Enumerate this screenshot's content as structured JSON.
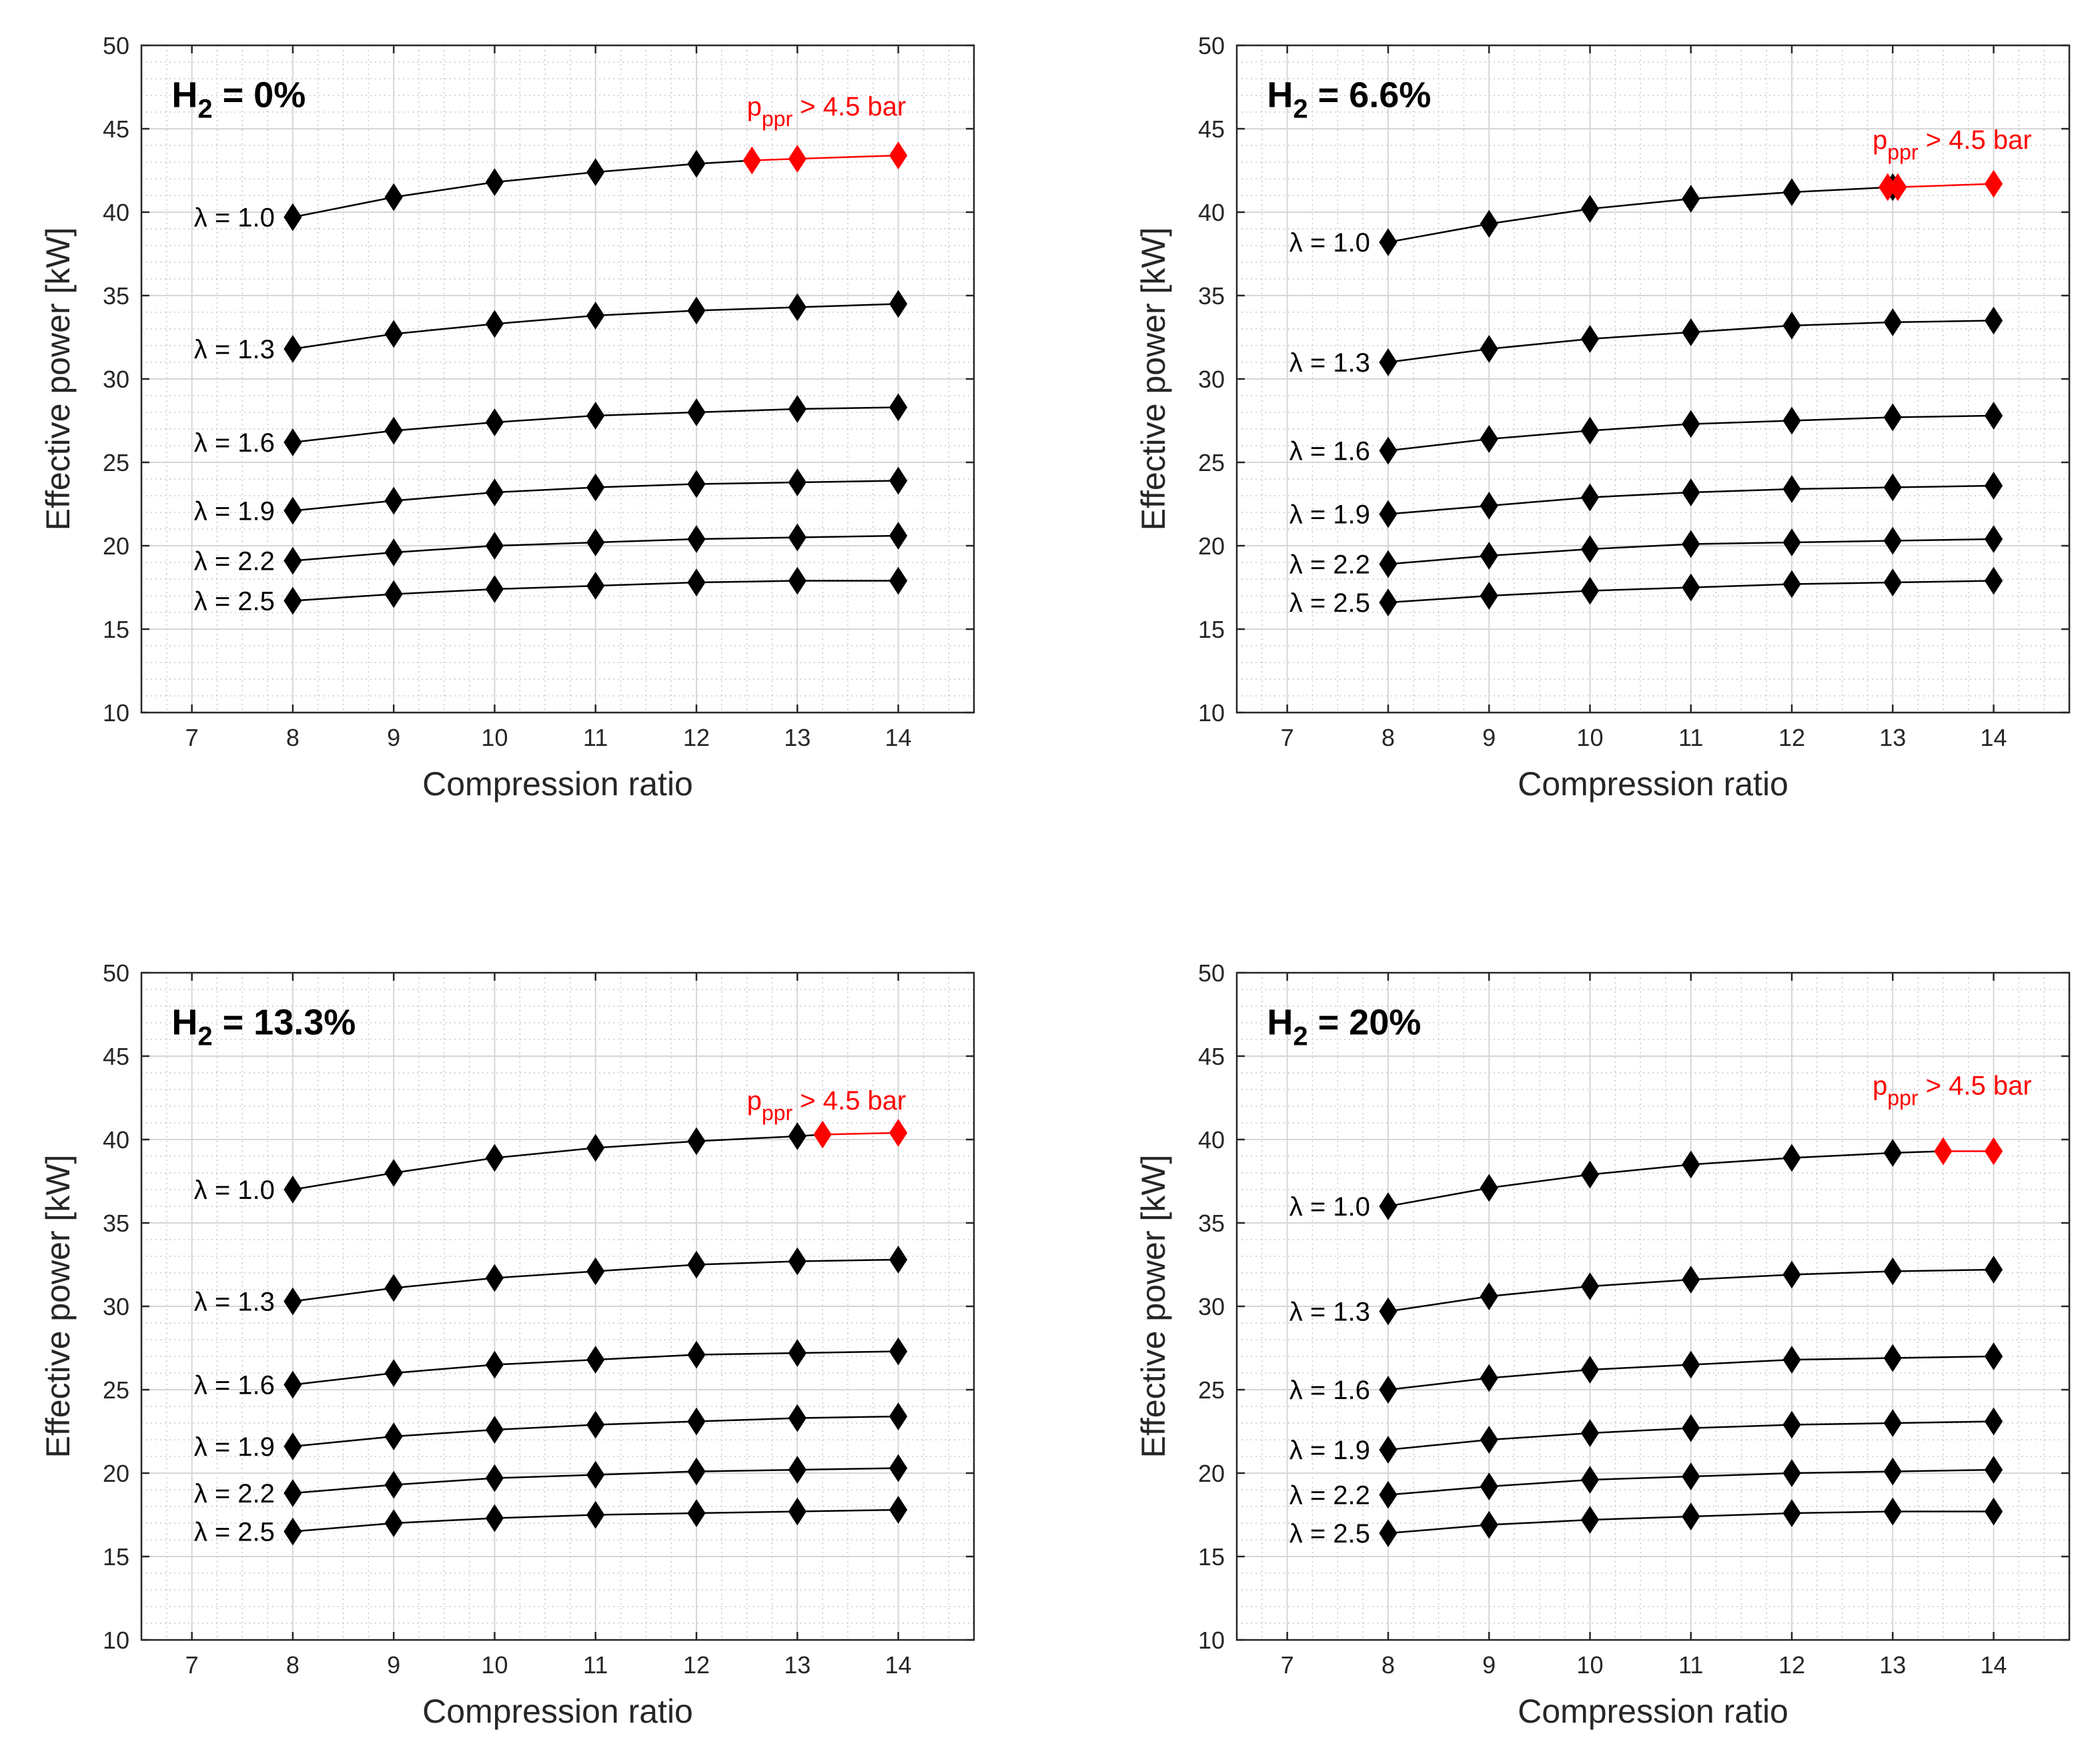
{
  "colors": {
    "black_series": "#000000",
    "red_series": "#ff0000",
    "grid": "#d0d0d0",
    "axis": "#262626"
  },
  "chart_data": [
    {
      "type": "line",
      "title": "H2 = 0%",
      "title_main": "H",
      "title_sub": "2",
      "title_rest": " = 0%",
      "xlabel": "Compression ratio",
      "ylabel": "Effective power [kW]",
      "xlim": [
        6.5,
        14.75
      ],
      "ylim": [
        10,
        50
      ],
      "xticks": [
        7,
        8,
        9,
        10,
        11,
        12,
        13,
        14
      ],
      "yticks": [
        10,
        15,
        20,
        25,
        30,
        35,
        40,
        45,
        50
      ],
      "grid": true,
      "annotation": {
        "main": "p",
        "sub": "ppr",
        "rest": " > 4.5 bar"
      },
      "series": [
        {
          "name": "λ = 1.0",
          "x": [
            8,
            9,
            10,
            11,
            12
          ],
          "y": [
            39.7,
            40.9,
            41.8,
            42.4,
            42.9
          ],
          "red_x": [
            12.55,
            13,
            14
          ],
          "red_y": [
            43.1,
            43.2,
            43.4
          ]
        },
        {
          "name": "λ = 1.3",
          "x": [
            8,
            9,
            10,
            11,
            12,
            13,
            14
          ],
          "y": [
            31.8,
            32.7,
            33.3,
            33.8,
            34.1,
            34.3,
            34.5
          ]
        },
        {
          "name": "λ = 1.6",
          "x": [
            8,
            9,
            10,
            11,
            12,
            13,
            14
          ],
          "y": [
            26.2,
            26.9,
            27.4,
            27.8,
            28.0,
            28.2,
            28.3
          ]
        },
        {
          "name": "λ = 1.9",
          "x": [
            8,
            9,
            10,
            11,
            12,
            13,
            14
          ],
          "y": [
            22.1,
            22.7,
            23.2,
            23.5,
            23.7,
            23.8,
            23.9
          ]
        },
        {
          "name": "λ = 2.2",
          "x": [
            8,
            9,
            10,
            11,
            12,
            13,
            14
          ],
          "y": [
            19.1,
            19.6,
            20.0,
            20.2,
            20.4,
            20.5,
            20.6
          ]
        },
        {
          "name": "λ = 2.5",
          "x": [
            8,
            9,
            10,
            11,
            12,
            13,
            14
          ],
          "y": [
            16.7,
            17.1,
            17.4,
            17.6,
            17.8,
            17.9,
            17.9
          ]
        }
      ]
    },
    {
      "type": "line",
      "title": "H2 = 6.6%",
      "title_main": "H",
      "title_sub": "2",
      "title_rest": " = 6.6%",
      "xlabel": "Compression ratio",
      "ylabel": "Effective power [kW]",
      "xlim": [
        6.5,
        14.75
      ],
      "ylim": [
        10,
        50
      ],
      "xticks": [
        7,
        8,
        9,
        10,
        11,
        12,
        13,
        14
      ],
      "yticks": [
        10,
        15,
        20,
        25,
        30,
        35,
        40,
        45,
        50
      ],
      "grid": true,
      "annotation": {
        "main": "p",
        "sub": "ppr",
        "rest": " > 4.5 bar"
      },
      "series": [
        {
          "name": "λ = 1.0",
          "x": [
            8,
            9,
            10,
            11,
            12,
            13
          ],
          "y": [
            38.2,
            39.3,
            40.2,
            40.8,
            41.2,
            41.5
          ],
          "red_x": [
            12.95,
            13.05,
            14
          ],
          "red_y": [
            41.5,
            41.5,
            41.7
          ]
        },
        {
          "name": "λ = 1.3",
          "x": [
            8,
            9,
            10,
            11,
            12,
            13,
            14
          ],
          "y": [
            31.0,
            31.8,
            32.4,
            32.8,
            33.2,
            33.4,
            33.5
          ]
        },
        {
          "name": "λ = 1.6",
          "x": [
            8,
            9,
            10,
            11,
            12,
            13,
            14
          ],
          "y": [
            25.7,
            26.4,
            26.9,
            27.3,
            27.5,
            27.7,
            27.8
          ]
        },
        {
          "name": "λ = 1.9",
          "x": [
            8,
            9,
            10,
            11,
            12,
            13,
            14
          ],
          "y": [
            21.9,
            22.4,
            22.9,
            23.2,
            23.4,
            23.5,
            23.6
          ]
        },
        {
          "name": "λ = 2.2",
          "x": [
            8,
            9,
            10,
            11,
            12,
            13,
            14
          ],
          "y": [
            18.9,
            19.4,
            19.8,
            20.1,
            20.2,
            20.3,
            20.4
          ]
        },
        {
          "name": "λ = 2.5",
          "x": [
            8,
            9,
            10,
            11,
            12,
            13,
            14
          ],
          "y": [
            16.6,
            17.0,
            17.3,
            17.5,
            17.7,
            17.8,
            17.9
          ]
        }
      ]
    },
    {
      "type": "line",
      "title": "H2 = 13.3%",
      "title_main": "H",
      "title_sub": "2",
      "title_rest": " = 13.3%",
      "xlabel": "Compression ratio",
      "ylabel": "Effective power [kW]",
      "xlim": [
        6.5,
        14.75
      ],
      "ylim": [
        10,
        50
      ],
      "xticks": [
        7,
        8,
        9,
        10,
        11,
        12,
        13,
        14
      ],
      "yticks": [
        10,
        15,
        20,
        25,
        30,
        35,
        40,
        45,
        50
      ],
      "grid": true,
      "annotation": {
        "main": "p",
        "sub": "ppr",
        "rest": " > 4.5 bar"
      },
      "series": [
        {
          "name": "λ = 1.0",
          "x": [
            8,
            9,
            10,
            11,
            12,
            13
          ],
          "y": [
            37.0,
            38.0,
            38.9,
            39.5,
            39.9,
            40.2
          ],
          "red_x": [
            13.25,
            14
          ],
          "red_y": [
            40.3,
            40.4
          ]
        },
        {
          "name": "λ = 1.3",
          "x": [
            8,
            9,
            10,
            11,
            12,
            13,
            14
          ],
          "y": [
            30.3,
            31.1,
            31.7,
            32.1,
            32.5,
            32.7,
            32.8
          ]
        },
        {
          "name": "λ = 1.6",
          "x": [
            8,
            9,
            10,
            11,
            12,
            13,
            14
          ],
          "y": [
            25.3,
            26.0,
            26.5,
            26.8,
            27.1,
            27.2,
            27.3
          ]
        },
        {
          "name": "λ = 1.9",
          "x": [
            8,
            9,
            10,
            11,
            12,
            13,
            14
          ],
          "y": [
            21.6,
            22.2,
            22.6,
            22.9,
            23.1,
            23.3,
            23.4
          ]
        },
        {
          "name": "λ = 2.2",
          "x": [
            8,
            9,
            10,
            11,
            12,
            13,
            14
          ],
          "y": [
            18.8,
            19.3,
            19.7,
            19.9,
            20.1,
            20.2,
            20.3
          ]
        },
        {
          "name": "λ = 2.5",
          "x": [
            8,
            9,
            10,
            11,
            12,
            13,
            14
          ],
          "y": [
            16.5,
            17.0,
            17.3,
            17.5,
            17.6,
            17.7,
            17.8
          ]
        }
      ]
    },
    {
      "type": "line",
      "title": "H2 = 20%",
      "title_main": "H",
      "title_sub": "2",
      "title_rest": " = 20%",
      "xlabel": "Compression ratio",
      "ylabel": "Effective power [kW]",
      "xlim": [
        6.5,
        14.75
      ],
      "ylim": [
        10,
        50
      ],
      "xticks": [
        7,
        8,
        9,
        10,
        11,
        12,
        13,
        14
      ],
      "yticks": [
        10,
        15,
        20,
        25,
        30,
        35,
        40,
        45,
        50
      ],
      "grid": true,
      "annotation": {
        "main": "p",
        "sub": "ppr",
        "rest": " > 4.5 bar"
      },
      "series": [
        {
          "name": "λ = 1.0",
          "x": [
            8,
            9,
            10,
            11,
            12,
            13
          ],
          "y": [
            36.0,
            37.1,
            37.9,
            38.5,
            38.9,
            39.2
          ],
          "red_x": [
            13.5,
            14
          ],
          "red_y": [
            39.3,
            39.3
          ]
        },
        {
          "name": "λ = 1.3",
          "x": [
            8,
            9,
            10,
            11,
            12,
            13,
            14
          ],
          "y": [
            29.7,
            30.6,
            31.2,
            31.6,
            31.9,
            32.1,
            32.2
          ]
        },
        {
          "name": "λ = 1.6",
          "x": [
            8,
            9,
            10,
            11,
            12,
            13,
            14
          ],
          "y": [
            25.0,
            25.7,
            26.2,
            26.5,
            26.8,
            26.9,
            27.0
          ]
        },
        {
          "name": "λ = 1.9",
          "x": [
            8,
            9,
            10,
            11,
            12,
            13,
            14
          ],
          "y": [
            21.4,
            22.0,
            22.4,
            22.7,
            22.9,
            23.0,
            23.1
          ]
        },
        {
          "name": "λ = 2.2",
          "x": [
            8,
            9,
            10,
            11,
            12,
            13,
            14
          ],
          "y": [
            18.7,
            19.2,
            19.6,
            19.8,
            20.0,
            20.1,
            20.2
          ]
        },
        {
          "name": "λ = 2.5",
          "x": [
            8,
            9,
            10,
            11,
            12,
            13,
            14
          ],
          "y": [
            16.4,
            16.9,
            17.2,
            17.4,
            17.6,
            17.7,
            17.7
          ]
        }
      ]
    }
  ]
}
